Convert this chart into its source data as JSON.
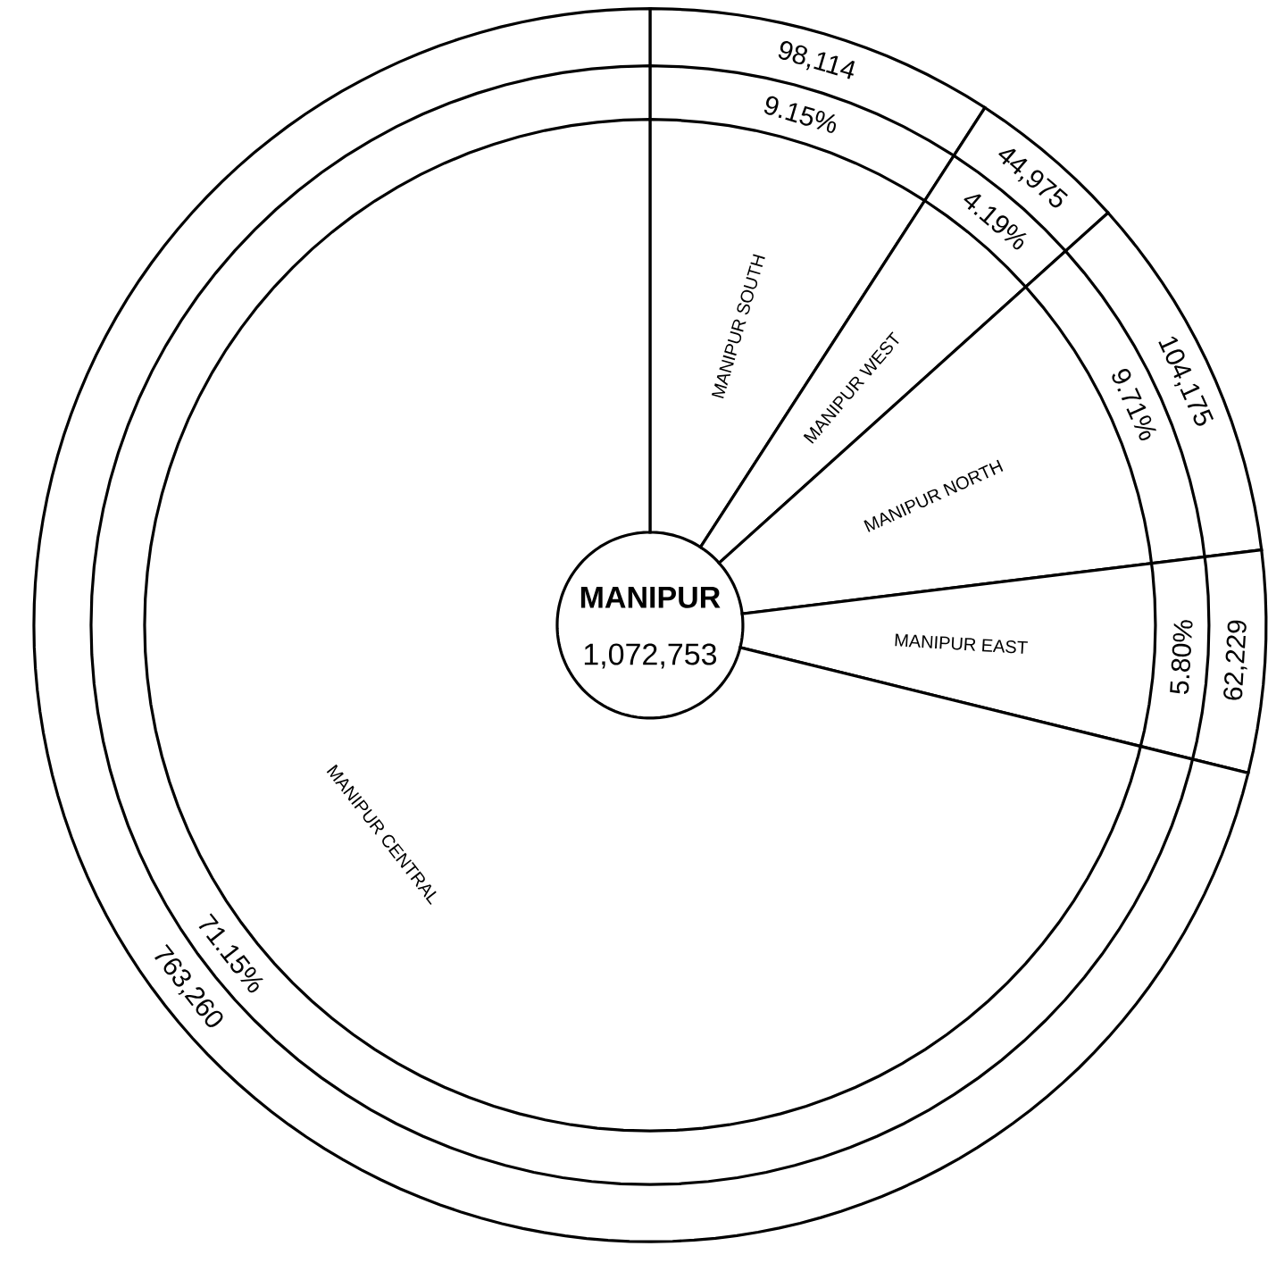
{
  "chart_data": {
    "type": "donut",
    "title": "MANIPUR",
    "subtitle": "1,072,753",
    "categories": [
      "MANIPUR SOUTH",
      "MANIPUR WEST",
      "MANIPUR NORTH",
      "MANIPUR EAST",
      "MANIPUR CENTRAL"
    ],
    "values": [
      98114,
      44975,
      104175,
      62229,
      763260
    ],
    "value_labels": [
      "98,114",
      "44,975",
      "104,175",
      "62,229",
      "763,260"
    ],
    "colors": [
      "#ffffff",
      "#ffffff",
      "#ffffff",
      "#ffffff",
      "#ffffff"
    ],
    "annotations": [
      {
        "text": "9.15%",
        "x": "MANIPUR SOUTH"
      },
      {
        "text": "4.19%",
        "x": "MANIPUR WEST"
      },
      {
        "text": "9.71%",
        "x": "MANIPUR NORTH"
      },
      {
        "text": "5.80%",
        "x": "MANIPUR EAST"
      },
      {
        "text": "71.15%",
        "x": "MANIPUR CENTRAL"
      }
    ]
  }
}
